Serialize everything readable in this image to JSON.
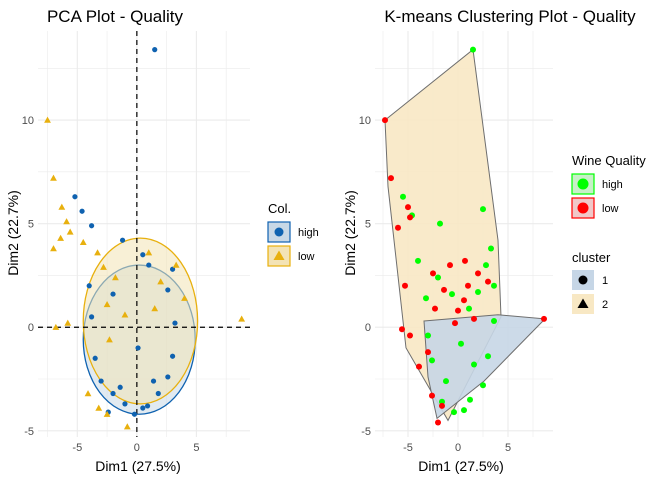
{
  "chart_data": [
    {
      "type": "scatter",
      "title": "PCA Plot - Quality",
      "xlabel": "Dim1 (27.5%)",
      "ylabel": "Dim2 (22.7%)",
      "xlim": [
        -8.3,
        9.5
      ],
      "ylim": [
        -5.3,
        14.3
      ],
      "xticks": [
        -5,
        0,
        5
      ],
      "yticks": [
        -5,
        0,
        5,
        10
      ],
      "grid": true,
      "reference_lines": {
        "x": 0,
        "y": 0,
        "style": "dashed"
      },
      "legend": {
        "title": "Col.",
        "placement": "right",
        "items": [
          {
            "label": "high",
            "color": "#0f62b0",
            "shape": "circle"
          },
          {
            "label": "low",
            "color": "#e8b00e",
            "shape": "triangle"
          }
        ]
      },
      "ellipses": [
        {
          "group": "high",
          "center": [
            0.2,
            -0.6
          ],
          "rx": 4.7,
          "ry": 3.6,
          "fill": "#c8d8e6",
          "stroke": "#0f62b0"
        },
        {
          "group": "low",
          "center": [
            0.3,
            0.3
          ],
          "rx": 4.8,
          "ry": 4.0,
          "fill": "#f3e3b5",
          "stroke": "#e8b00e"
        }
      ],
      "series": [
        {
          "name": "high",
          "color": "#0f62b0",
          "shape": "circle",
          "points": [
            [
              1.5,
              13.4
            ],
            [
              -5.2,
              6.3
            ],
            [
              -4.6,
              5.6
            ],
            [
              -3.8,
              4.9
            ],
            [
              -1.2,
              4.2
            ],
            [
              0.5,
              3.5
            ],
            [
              1.0,
              3.0
            ],
            [
              3.0,
              2.8
            ],
            [
              -4.0,
              2.0
            ],
            [
              -2.0,
              1.6
            ],
            [
              2.6,
              1.8
            ],
            [
              -3.8,
              0.5
            ],
            [
              3.2,
              0.2
            ],
            [
              -3.5,
              -1.5
            ],
            [
              3.0,
              -1.4
            ],
            [
              -3.0,
              -2.6
            ],
            [
              2.6,
              -2.4
            ],
            [
              -2.0,
              -3.2
            ],
            [
              1.8,
              -3.2
            ],
            [
              -1.0,
              -3.7
            ],
            [
              0.9,
              -3.8
            ],
            [
              -2.4,
              -4.1
            ],
            [
              -0.2,
              -4.2
            ],
            [
              0.5,
              -3.9
            ],
            [
              -1.4,
              -2.9
            ],
            [
              1.4,
              -2.6
            ],
            [
              0.1,
              -1.0
            ]
          ]
        },
        {
          "name": "low",
          "color": "#e8b00e",
          "shape": "triangle",
          "points": [
            [
              -7.5,
              10.0
            ],
            [
              -7.0,
              7.2
            ],
            [
              -6.3,
              5.8
            ],
            [
              -5.9,
              5.1
            ],
            [
              -5.6,
              4.6
            ],
            [
              -6.4,
              4.3
            ],
            [
              -7.0,
              3.8
            ],
            [
              -4.5,
              4.1
            ],
            [
              -3.3,
              3.6
            ],
            [
              1.0,
              3.6
            ],
            [
              3.3,
              3.0
            ],
            [
              4.0,
              1.4
            ],
            [
              8.8,
              0.4
            ],
            [
              -6.8,
              0.0
            ],
            [
              -5.8,
              0.2
            ],
            [
              -2.8,
              2.9
            ],
            [
              -1.8,
              2.4
            ],
            [
              2.0,
              2.2
            ],
            [
              -2.5,
              1.1
            ],
            [
              1.5,
              0.9
            ],
            [
              -1.0,
              0.6
            ],
            [
              -2.3,
              -0.6
            ],
            [
              -4.1,
              -3.2
            ],
            [
              -2.5,
              -4.2
            ],
            [
              -3.2,
              -3.9
            ],
            [
              -0.8,
              -4.8
            ]
          ]
        }
      ]
    },
    {
      "type": "scatter",
      "title": "K-means Clustering Plot - Quality",
      "xlabel": "Dim1 (27.5%)",
      "ylabel": "Dim2 (22.7%)",
      "xlim": [
        -8.3,
        9.5
      ],
      "ylim": [
        -5.3,
        14.3
      ],
      "xticks": [
        -5,
        0,
        5
      ],
      "yticks": [
        -5,
        0,
        5,
        10
      ],
      "grid": true,
      "legend": {
        "placement": "right",
        "groups": [
          {
            "title": "Wine Quality",
            "items": [
              {
                "label": "high",
                "color": "#00ff00",
                "shape": "circle"
              },
              {
                "label": "low",
                "color": "#ff0000",
                "shape": "circle"
              }
            ]
          },
          {
            "title": "cluster",
            "items": [
              {
                "label": "1",
                "fill": "#c6d6e6",
                "shape": "circle"
              },
              {
                "label": "2",
                "fill": "#f8e8c4",
                "shape": "triangle"
              }
            ]
          }
        ]
      },
      "hulls": [
        {
          "cluster": "2",
          "fill": "#f8e8c4",
          "stroke": "#6e6e6e",
          "vertices": [
            [
              -7.3,
              10.0
            ],
            [
              1.5,
              13.4
            ],
            [
              4.0,
              4.2
            ],
            [
              4.3,
              0.5
            ],
            [
              -1.0,
              -4.5
            ],
            [
              -5.2,
              -1.0
            ],
            [
              -7.0,
              6.8
            ]
          ]
        },
        {
          "cluster": "1",
          "fill": "#c6d6e6",
          "stroke": "#6e6e6e",
          "vertices": [
            [
              -3.4,
              0.3
            ],
            [
              4.0,
              0.6
            ],
            [
              8.7,
              0.4
            ],
            [
              2.6,
              -2.6
            ],
            [
              -2.1,
              -4.4
            ],
            [
              -3.0,
              -2.4
            ]
          ]
        }
      ],
      "series": [
        {
          "name": "high",
          "color": "#00ff00",
          "shape": "circle",
          "points": [
            [
              1.5,
              13.4
            ],
            [
              -5.5,
              6.3
            ],
            [
              2.5,
              5.7
            ],
            [
              -1.8,
              5.0
            ],
            [
              -4.6,
              5.4
            ],
            [
              3.3,
              3.8
            ],
            [
              -4.0,
              3.2
            ],
            [
              2.8,
              3.0
            ],
            [
              -3.2,
              1.4
            ],
            [
              3.6,
              2.0
            ],
            [
              -3.0,
              -0.4
            ],
            [
              3.6,
              0.3
            ],
            [
              -2.6,
              -1.6
            ],
            [
              3.0,
              -1.4
            ],
            [
              2.5,
              -2.8
            ],
            [
              -1.6,
              -3.6
            ],
            [
              1.2,
              -3.5
            ],
            [
              -0.4,
              -4.1
            ],
            [
              0.6,
              -4.0
            ],
            [
              -1.2,
              -2.6
            ],
            [
              0.3,
              -0.8
            ],
            [
              1.1,
              0.9
            ],
            [
              -0.6,
              1.6
            ],
            [
              -2.0,
              2.4
            ],
            [
              2.0,
              1.7
            ],
            [
              1.6,
              -1.8
            ]
          ]
        },
        {
          "name": "low",
          "color": "#ff0000",
          "shape": "circle",
          "points": [
            [
              -7.3,
              10.0
            ],
            [
              -6.7,
              7.2
            ],
            [
              -5.0,
              5.8
            ],
            [
              -4.8,
              5.3
            ],
            [
              -6.0,
              4.8
            ],
            [
              -5.3,
              2.0
            ],
            [
              -5.6,
              -0.1
            ],
            [
              -4.8,
              -0.4
            ],
            [
              -3.9,
              -1.9
            ],
            [
              8.6,
              0.4
            ],
            [
              -0.8,
              3.0
            ],
            [
              -2.5,
              2.6
            ],
            [
              0.7,
              3.2
            ],
            [
              2.0,
              2.6
            ],
            [
              3.0,
              2.2
            ],
            [
              -1.4,
              1.8
            ],
            [
              0.6,
              1.3
            ],
            [
              -2.3,
              0.9
            ],
            [
              1.6,
              0.4
            ],
            [
              -0.3,
              0.2
            ],
            [
              -3.0,
              -1.2
            ],
            [
              -2.0,
              -4.6
            ],
            [
              -1.6,
              -3.8
            ],
            [
              -2.6,
              -3.3
            ],
            [
              0.0,
              0.8
            ],
            [
              1.0,
              2.0
            ]
          ]
        }
      ]
    }
  ]
}
